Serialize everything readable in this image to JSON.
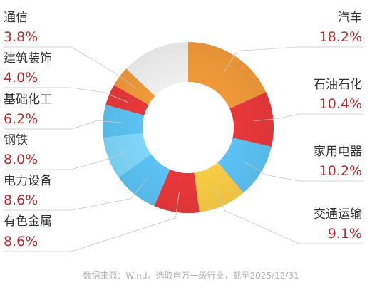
{
  "chart_data": {
    "type": "pie",
    "subtype": "donut",
    "categories": [
      "汽车",
      "石油石化",
      "家用电器",
      "交通运输",
      "有色金属",
      "电力设备",
      "钢铁",
      "基础化工",
      "建筑装饰",
      "通信",
      ""
    ],
    "values": [
      18.2,
      10.4,
      10.2,
      9.1,
      8.6,
      8.6,
      8.0,
      6.2,
      4.0,
      3.8,
      12.9
    ],
    "value_labels": [
      "18.2%",
      "10.4%",
      "10.2%",
      "9.1%",
      "8.6%",
      "8.6%",
      "8.0%",
      "6.2%",
      "4.0%",
      "3.8%",
      ""
    ],
    "colors": [
      "#f0993a",
      "#e8383a",
      "#5cc2f2",
      "#f7cc45",
      "#e8383a",
      "#5cc2f2",
      "#7fd6f9",
      "#5cc2f2",
      "#e8383a",
      "#f0993a",
      "#efefef"
    ],
    "start": "12 o'clock",
    "direction": "clockwise",
    "legend": "none (labels placed around the donut with leader lines)"
  },
  "source": "数据来源：Wind，选取申万一级行业，截至2025/12/31"
}
